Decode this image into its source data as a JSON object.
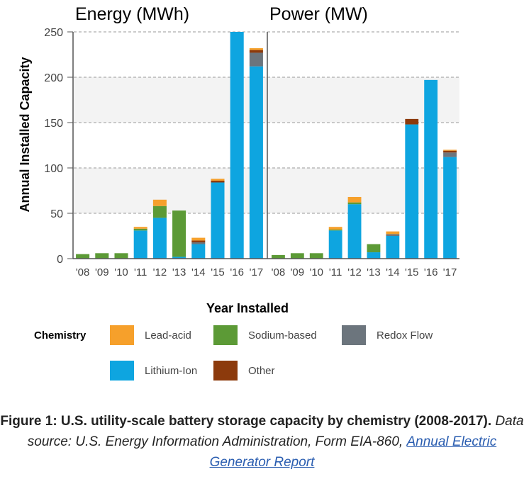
{
  "axis_label_y": "Annual Installed Capacity",
  "axis_label_x": "Year Installed",
  "chart_data": [
    {
      "type": "bar",
      "stacked": true,
      "title": "Energy (MWh)",
      "categories": [
        "'08",
        "'09",
        "'10",
        "'11",
        "'12",
        "'13",
        "'14",
        "'15",
        "'16",
        "'17"
      ],
      "ylim": [
        0,
        250
      ],
      "yticks": [
        0,
        50,
        100,
        150,
        200,
        250
      ],
      "series": [
        {
          "name": "Lithium-Ion",
          "color": "#0ea5e0",
          "values": [
            0,
            0,
            0,
            31,
            45,
            2,
            16,
            84,
            250,
            212
          ]
        },
        {
          "name": "Sodium-based",
          "color": "#5c9a36",
          "values": [
            5,
            6,
            6,
            2,
            13,
            51,
            0,
            0,
            0,
            0
          ]
        },
        {
          "name": "Redox Flow",
          "color": "#6c757d",
          "values": [
            0,
            0,
            0,
            0,
            0,
            0,
            2,
            0,
            0,
            15
          ]
        },
        {
          "name": "Other",
          "color": "#8c3a0c",
          "values": [
            0,
            0,
            0,
            0,
            0,
            0,
            2,
            2,
            0,
            3
          ]
        },
        {
          "name": "Lead-acid",
          "color": "#f6a02b",
          "values": [
            0,
            0,
            0,
            2,
            7,
            0,
            3,
            2,
            0,
            2
          ]
        }
      ],
      "grid": true
    },
    {
      "type": "bar",
      "stacked": true,
      "title": "Power (MW)",
      "categories": [
        "'08",
        "'09",
        "'10",
        "'11",
        "'12",
        "'13",
        "'14",
        "'15",
        "'16",
        "'17"
      ],
      "ylim": [
        0,
        250
      ],
      "yticks": [
        0,
        50,
        100,
        150,
        200,
        250
      ],
      "series": [
        {
          "name": "Lithium-Ion",
          "color": "#0ea5e0",
          "values": [
            0,
            0,
            0,
            31,
            60,
            7,
            25,
            148,
            197,
            112
          ]
        },
        {
          "name": "Sodium-based",
          "color": "#5c9a36",
          "values": [
            4,
            6,
            6,
            1,
            2,
            9,
            0,
            0,
            0,
            0
          ]
        },
        {
          "name": "Redox Flow",
          "color": "#6c757d",
          "values": [
            0,
            0,
            0,
            0,
            0,
            0,
            2,
            0,
            0,
            5
          ]
        },
        {
          "name": "Other",
          "color": "#8c3a0c",
          "values": [
            0,
            0,
            0,
            0,
            0,
            0,
            0,
            6,
            0,
            2
          ]
        },
        {
          "name": "Lead-acid",
          "color": "#f6a02b",
          "values": [
            0,
            0,
            0,
            3,
            6,
            0,
            3,
            0,
            0,
            1
          ]
        }
      ],
      "grid": true
    }
  ],
  "legend": {
    "title": "Chemistry",
    "items": [
      {
        "label": "Lead-acid",
        "color": "#f6a02b"
      },
      {
        "label": "Sodium-based",
        "color": "#5c9a36"
      },
      {
        "label": "Redox Flow",
        "color": "#6c757d"
      },
      {
        "label": "Lithium-Ion",
        "color": "#0ea5e0"
      },
      {
        "label": "Other",
        "color": "#8c3a0c"
      }
    ]
  },
  "caption": {
    "bold": "Figure 1: U.S. utility-scale battery storage capacity by chemistry (2008-2017).",
    "italic": "Data source: U.S. Energy Information Administration, Form EIA-860,",
    "link": "Annual Electric Generator Report"
  }
}
